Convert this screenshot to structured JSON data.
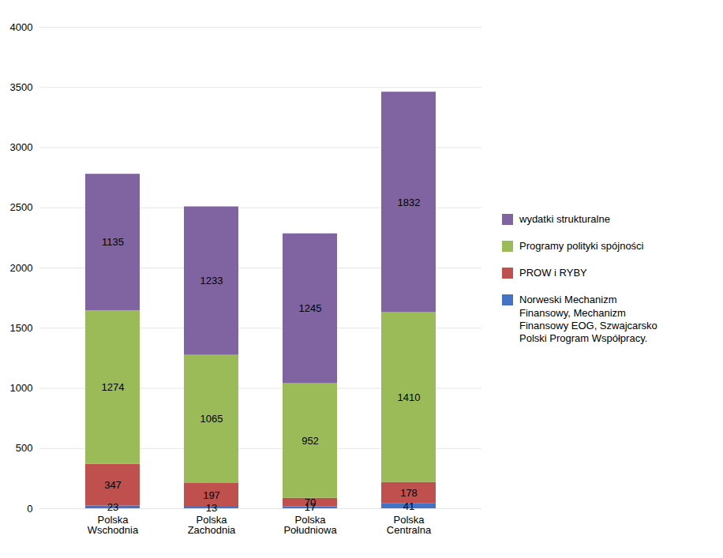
{
  "chart_data": {
    "type": "bar",
    "stacked": true,
    "data_labels": true,
    "grid": true,
    "legend": "right",
    "categories": [
      "Polska\nWschodnia",
      "Polska\nZachodnia",
      "Polska\nPołudniowa",
      "Polska\nCentralna"
    ],
    "series": [
      {
        "name": "Norweski Mechanizm\nFinansowy, Mechanizm\nFinansowy EOG, Szwajcarsko\nPolski Program Współpracy.",
        "color": "#4472C4",
        "values": [
          23,
          13,
          17,
          41
        ]
      },
      {
        "name": "PROW i RYBY",
        "color": "#C0504D",
        "values": [
          347,
          197,
          70,
          178
        ]
      },
      {
        "name": "Programy polityki spójności",
        "color": "#9BBB59",
        "values": [
          1274,
          1065,
          952,
          1410
        ]
      },
      {
        "name": "wydatki strukturalne",
        "color": "#8064A2",
        "values": [
          1135,
          1233,
          1245,
          1832
        ]
      }
    ],
    "ylim": [
      0,
      4000
    ],
    "yticks": [
      0,
      500,
      1000,
      1500,
      2000,
      2500,
      3000,
      3500,
      4000
    ]
  }
}
